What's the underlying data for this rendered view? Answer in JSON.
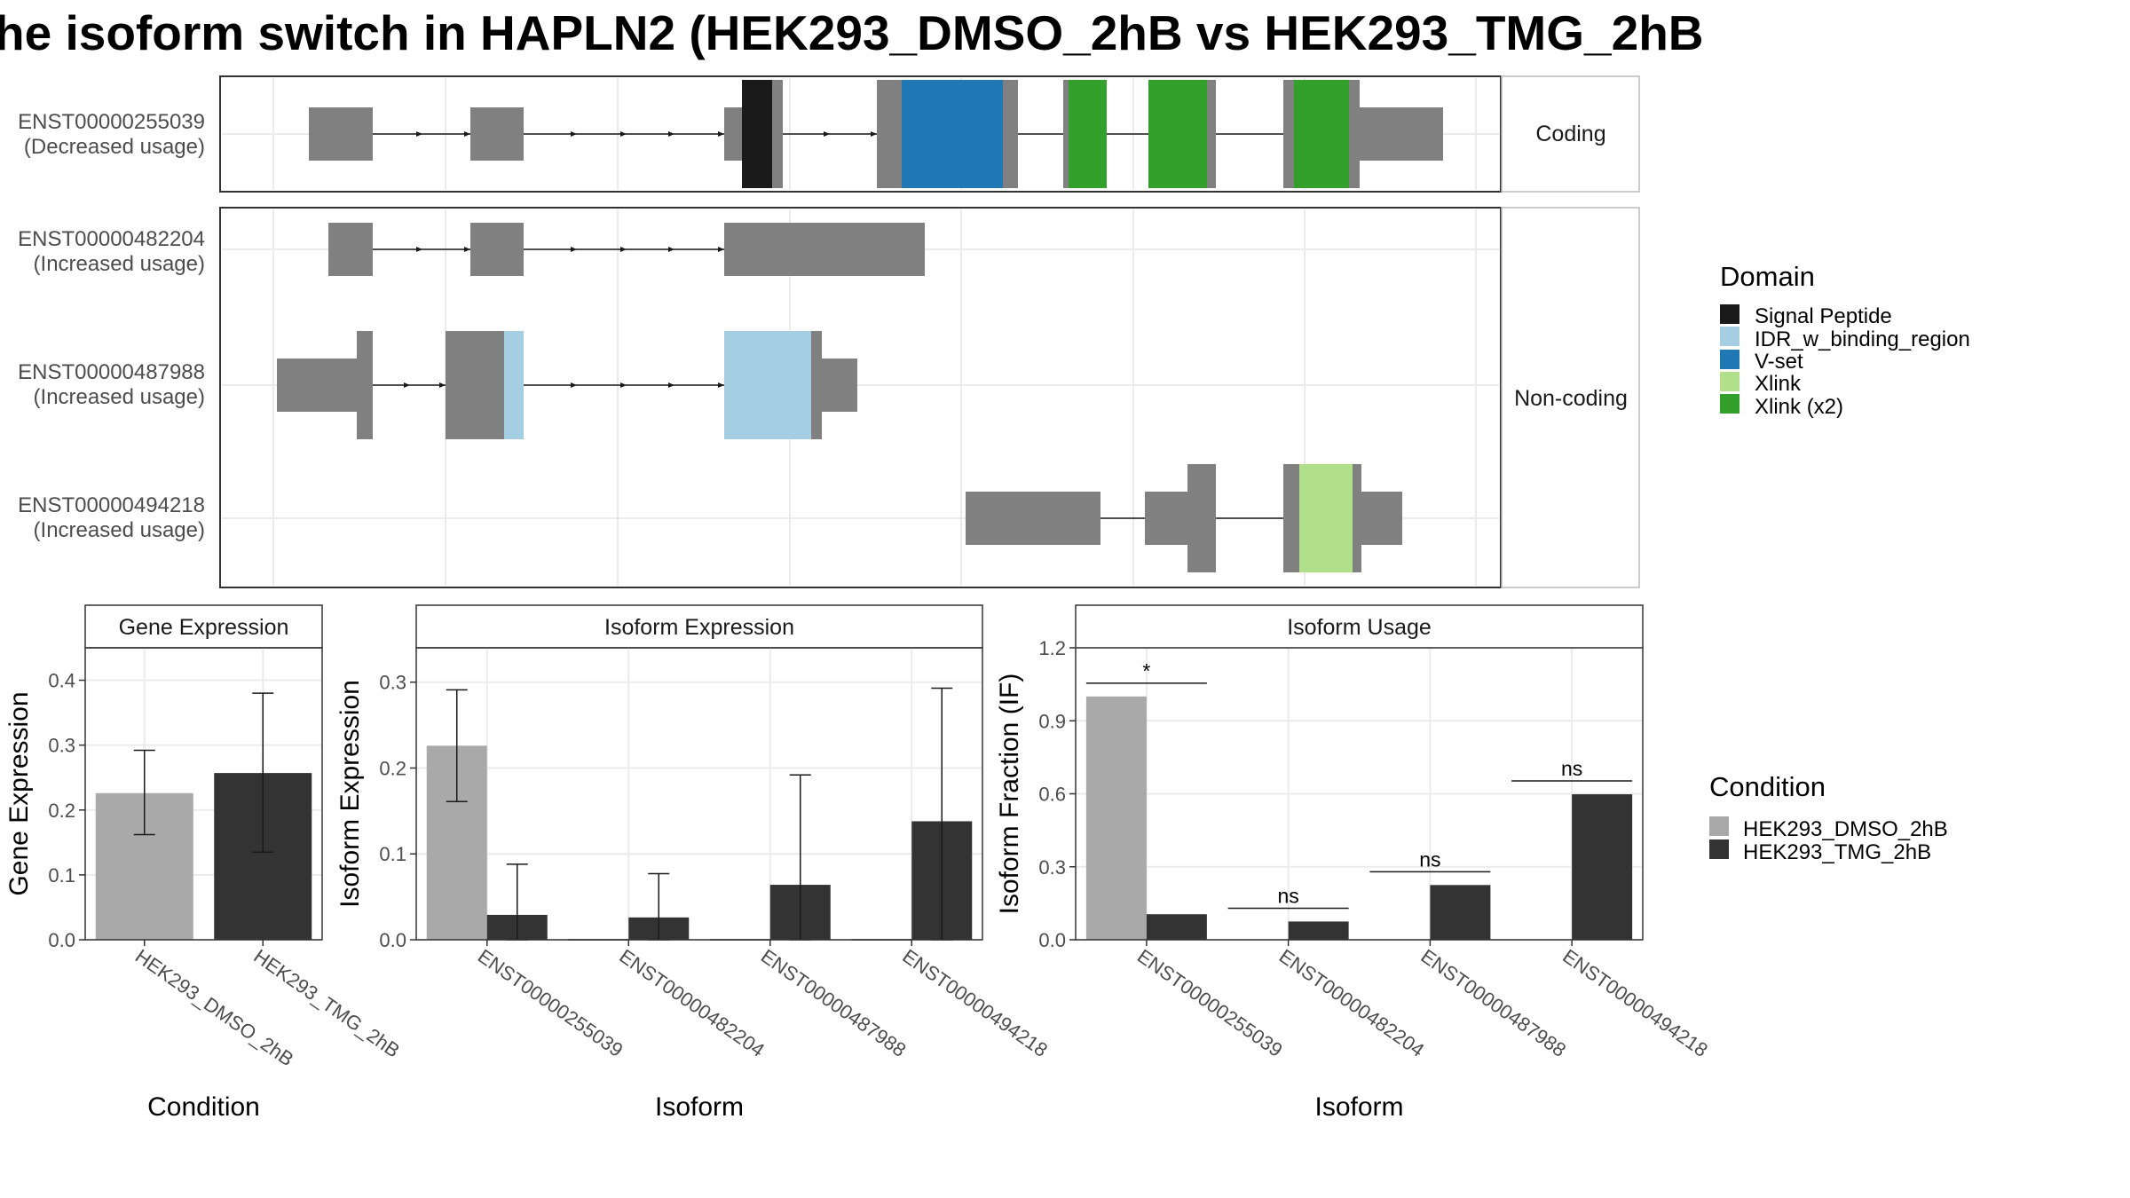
{
  "title": "he isoform switch in HAPLN2 (HEK293_DMSO_2hB vs HEK293_TMG_2hB",
  "structure": {
    "facets": [
      "Coding",
      "Non-coding"
    ],
    "isoforms": [
      {
        "id": "ENST00000255039",
        "usage": "(Decreased usage)"
      },
      {
        "id": "ENST00000482204",
        "usage": "(Increased usage)"
      },
      {
        "id": "ENST00000487988",
        "usage": "(Increased usage)"
      },
      {
        "id": "ENST00000494218",
        "usage": "(Increased usage)"
      }
    ],
    "domain_legend": {
      "title": "Domain",
      "items": [
        {
          "label": "Signal Peptide",
          "color": "#1a1a1a"
        },
        {
          "label": "IDR_w_binding_region",
          "color": "#a6cee3"
        },
        {
          "label": "V-set",
          "color": "#1f78b4"
        },
        {
          "label": "Xlink",
          "color": "#b2df8a"
        },
        {
          "label": "Xlink (x2)",
          "color": "#33a02c"
        }
      ]
    }
  },
  "condition_legend": {
    "title": "Condition",
    "items": [
      {
        "label": "HEK293_DMSO_2hB",
        "color": "#a9a9a9"
      },
      {
        "label": "HEK293_TMG_2hB",
        "color": "#333333"
      }
    ]
  },
  "chart_data": [
    {
      "type": "bar",
      "title": "Gene Expression",
      "xlabel": "Condition",
      "ylabel": "Gene Expression",
      "ylim": [
        0,
        0.45
      ],
      "yticks": [
        "0.0",
        "0.1",
        "0.2",
        "0.3",
        "0.4"
      ],
      "categories": [
        "HEK293_DMSO_2hB",
        "HEK293_TMG_2hB"
      ],
      "values": [
        0.226,
        0.257
      ],
      "errors_low": [
        0.162,
        0.135
      ],
      "errors_high": [
        0.292,
        0.38
      ]
    },
    {
      "type": "bar",
      "title": "Isoform Expression",
      "xlabel": "Isoform",
      "ylabel": "Isoform Expression",
      "ylim": [
        0,
        0.34
      ],
      "yticks": [
        "0.0",
        "0.1",
        "0.2",
        "0.3"
      ],
      "categories": [
        "ENST00000255039",
        "ENST00000482204",
        "ENST00000487988",
        "ENST00000494218"
      ],
      "series": [
        {
          "name": "HEK293_DMSO_2hB",
          "values": [
            0.226,
            0.0,
            0.0,
            0.0
          ],
          "errors_low": [
            0.161,
            null,
            null,
            null
          ],
          "errors_high": [
            0.291,
            null,
            null,
            null
          ]
        },
        {
          "name": "HEK293_TMG_2hB",
          "values": [
            0.029,
            0.026,
            0.064,
            0.138
          ],
          "errors_low": [
            0.0,
            0.0,
            0.0,
            0.0
          ],
          "errors_high": [
            0.088,
            0.077,
            0.192,
            0.293
          ]
        }
      ]
    },
    {
      "type": "bar",
      "title": "Isoform Usage",
      "xlabel": "Isoform",
      "ylabel": "Isoform Fraction (IF)",
      "ylim": [
        0,
        1.2
      ],
      "yticks": [
        "0.0",
        "0.3",
        "0.6",
        "0.9",
        "1.2"
      ],
      "categories": [
        "ENST00000255039",
        "ENST00000482204",
        "ENST00000487988",
        "ENST00000494218"
      ],
      "series": [
        {
          "name": "HEK293_DMSO_2hB",
          "values": [
            1.0,
            0.0,
            0.0,
            0.0
          ]
        },
        {
          "name": "HEK293_TMG_2hB",
          "values": [
            0.105,
            0.075,
            0.225,
            0.598
          ]
        }
      ],
      "significance": [
        "*",
        "ns",
        "ns",
        "ns"
      ]
    }
  ]
}
